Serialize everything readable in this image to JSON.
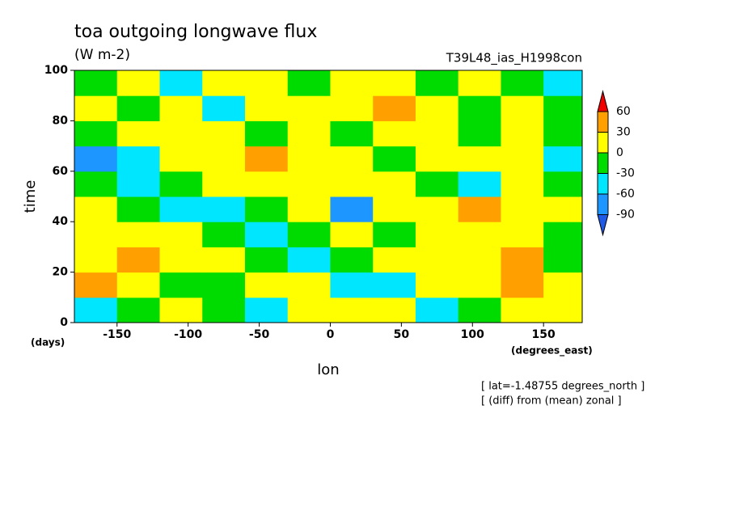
{
  "chart_data": {
    "type": "heatmap",
    "title": "toa outgoing longwave flux",
    "subtitle": "(W m-2)",
    "experiment": "T39L48_ias_H1998con",
    "xlabel": "lon",
    "ylabel": "time",
    "xunit": "(degrees_east)",
    "yunit": "(days)",
    "annotations": [
      "[ lat=-1.48755 degrees_north ]",
      "[ (diff) from (mean) zonal ]"
    ],
    "xlim": [
      -180,
      177.2
    ],
    "ylim": [
      0,
      100
    ],
    "xticks": [
      -150,
      -100,
      -50,
      0,
      50,
      100,
      150
    ],
    "yticks": [
      0,
      20,
      40,
      60,
      80,
      100
    ],
    "levels": [
      -90,
      -60,
      -30,
      0,
      30,
      60
    ],
    "colors": [
      "#1e5ae6",
      "#1e96ff",
      "#00e6ff",
      "#00dc00",
      "#ffff00",
      "#ffa000",
      "#f00000"
    ],
    "x": [
      -165,
      -135,
      -105,
      -75,
      -45,
      -15,
      15,
      45,
      75,
      105,
      135,
      165
    ],
    "y": [
      5,
      15,
      25,
      35,
      45,
      55,
      65,
      75,
      85,
      95
    ],
    "z": [
      [
        -45,
        -15,
        15,
        -15,
        -45,
        15,
        15,
        15,
        -45,
        -15,
        15,
        15
      ],
      [
        45,
        15,
        -15,
        -15,
        15,
        15,
        -45,
        -45,
        15,
        15,
        45,
        15
      ],
      [
        15,
        45,
        15,
        15,
        -15,
        -45,
        -15,
        15,
        15,
        15,
        45,
        -15
      ],
      [
        15,
        15,
        15,
        -15,
        -45,
        -15,
        15,
        -15,
        15,
        15,
        15,
        -15
      ],
      [
        15,
        -15,
        -45,
        -45,
        -15,
        15,
        -75,
        15,
        15,
        45,
        15,
        15
      ],
      [
        -15,
        -45,
        -15,
        15,
        15,
        15,
        15,
        15,
        -15,
        -45,
        15,
        -15
      ],
      [
        -75,
        -45,
        15,
        15,
        45,
        15,
        15,
        -15,
        15,
        15,
        15,
        -45
      ],
      [
        -15,
        15,
        15,
        15,
        -15,
        15,
        -15,
        15,
        15,
        -15,
        15,
        -15
      ],
      [
        15,
        -15,
        15,
        -45,
        15,
        15,
        15,
        45,
        15,
        -15,
        15,
        -15
      ],
      [
        -15,
        15,
        -45,
        15,
        15,
        -15,
        15,
        15,
        -15,
        15,
        -15,
        -45
      ]
    ]
  }
}
